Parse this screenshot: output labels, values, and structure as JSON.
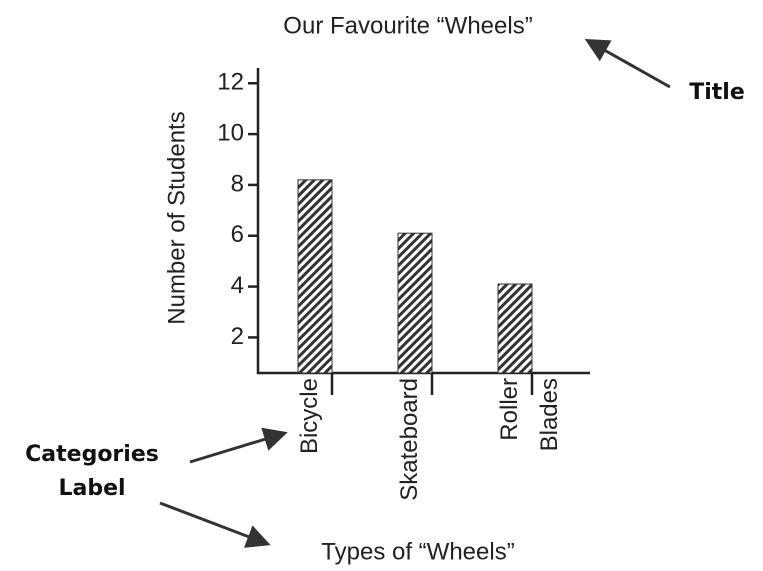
{
  "chart_data": {
    "type": "bar",
    "title": "Our Favourite “Wheels”",
    "x_label": "Types of “Wheels”",
    "y_label": "Number of Students",
    "categories": [
      "Bicycle",
      "Skateboard",
      "Roller Blades"
    ],
    "values": [
      8.2,
      6.1,
      4.1
    ],
    "ylim": [
      0.6,
      12.6
    ],
    "yticks": [
      2,
      4,
      6,
      8,
      10,
      12
    ],
    "annotations": [
      "Title",
      "Categories Label"
    ]
  }
}
